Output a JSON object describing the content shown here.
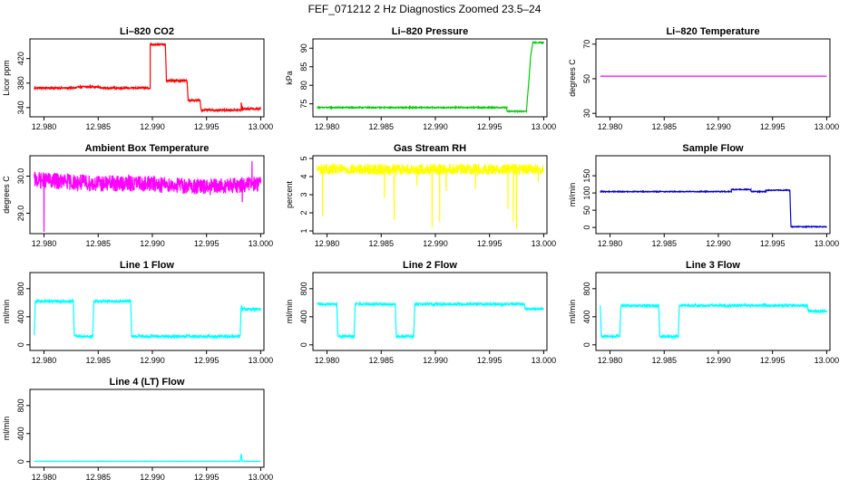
{
  "page_title": "FEF_071212  2 Hz Diagnostics Zoomed 23.5–24",
  "chart_data": [
    {
      "type": "line",
      "title": "Li–820 CO2",
      "ylabel": "Licor ppm",
      "color": "#ff0000",
      "xlim": [
        12.9787,
        13.0003
      ],
      "ylim": [
        325,
        452
      ],
      "xticks": [
        12.98,
        12.985,
        12.99,
        12.995,
        13.0
      ],
      "xtick_labels": [
        "12.980",
        "12.985",
        "12.990",
        "12.995",
        "13.000"
      ],
      "yticks": [
        340,
        380,
        420
      ],
      "ytick_labels": [
        "340",
        "380",
        "420"
      ],
      "series": [
        {
          "x": [
            12.9791,
            12.983,
            12.9832,
            12.985,
            12.9852,
            12.9898,
            12.9898,
            12.9912,
            12.9913,
            12.9932,
            12.9933,
            12.9944,
            12.9945,
            12.9982,
            12.9982,
            12.9983,
            12.9983,
            13.0
          ],
          "y": [
            372,
            372,
            374,
            374,
            372,
            372,
            443,
            443,
            384,
            384,
            352,
            352,
            336,
            336,
            348,
            336,
            338,
            338
          ],
          "noise": 1.5
        }
      ]
    },
    {
      "type": "line",
      "title": "Li–820 Pressure",
      "ylabel": "kPa",
      "color": "#00cc00",
      "xlim": [
        12.9787,
        13.0003
      ],
      "ylim": [
        71.5,
        92.5
      ],
      "xticks": [
        12.98,
        12.985,
        12.99,
        12.995,
        13.0
      ],
      "xtick_labels": [
        "12.980",
        "12.985",
        "12.990",
        "12.995",
        "13.000"
      ],
      "yticks": [
        75,
        80,
        85,
        90
      ],
      "ytick_labels": [
        "75",
        "80",
        "85",
        "90"
      ],
      "series": [
        {
          "x": [
            12.9791,
            12.9966,
            12.9966,
            12.9984,
            12.9986,
            12.9988,
            12.999,
            13.0
          ],
          "y": [
            74.0,
            74.0,
            73.0,
            73.0,
            80.0,
            88.0,
            91.5,
            91.5
          ],
          "noise": 0.15
        }
      ]
    },
    {
      "type": "line",
      "title": "Li–820 Temperature",
      "ylabel": "degrees C",
      "color": "#ff00ff",
      "xlim": [
        12.9787,
        13.0003
      ],
      "ylim": [
        28,
        73
      ],
      "xticks": [
        12.98,
        12.985,
        12.99,
        12.995,
        13.0
      ],
      "xtick_labels": [
        "12.980",
        "12.985",
        "12.990",
        "12.995",
        "13.000"
      ],
      "yticks": [
        30,
        50,
        70
      ],
      "ytick_labels": [
        "30",
        "50",
        "70"
      ],
      "series": [
        {
          "x": [
            12.9791,
            13.0
          ],
          "y": [
            51.5,
            51.5
          ],
          "noise": 0
        }
      ]
    },
    {
      "type": "line",
      "title": "Ambient Box Temperature",
      "ylabel": "degrees C",
      "color": "#ff00ff",
      "xlim": [
        12.9787,
        13.0003
      ],
      "ylim": [
        28.45,
        30.55
      ],
      "xticks": [
        12.98,
        12.985,
        12.99,
        12.995,
        13.0
      ],
      "xtick_labels": [
        "12.980",
        "12.985",
        "12.990",
        "12.995",
        "13.000"
      ],
      "yticks": [
        29.0,
        30.0
      ],
      "ytick_labels": [
        "29.0",
        "30.0"
      ],
      "series": [
        {
          "x": [
            12.9791,
            12.985,
            12.99,
            12.995,
            13.0
          ],
          "y": [
            29.9,
            29.8,
            29.8,
            29.7,
            29.8
          ],
          "noise": 0.22,
          "spikes": [
            [
              12.98,
              28.5
            ],
            [
              12.9983,
              29.3
            ],
            [
              12.9992,
              30.4
            ]
          ]
        }
      ]
    },
    {
      "type": "line",
      "title": "Gas Stream RH",
      "ylabel": "percent",
      "color": "#ffff00",
      "xlim": [
        12.9787,
        13.0003
      ],
      "ylim": [
        0.85,
        5.15
      ],
      "xticks": [
        12.98,
        12.985,
        12.99,
        12.995,
        13.0
      ],
      "xtick_labels": [
        "12.980",
        "12.985",
        "12.990",
        "12.995",
        "13.000"
      ],
      "yticks": [
        1,
        2,
        3,
        4,
        5
      ],
      "ytick_labels": [
        "1",
        "2",
        "3",
        "4",
        "5"
      ],
      "series": [
        {
          "x": [
            12.9791,
            12.99,
            13.0
          ],
          "y": [
            4.4,
            4.4,
            4.4
          ],
          "noise": 0.3,
          "spikes": [
            [
              12.9796,
              1.8
            ],
            [
              12.9853,
              2.8
            ],
            [
              12.9862,
              1.6
            ],
            [
              12.9883,
              3.5
            ],
            [
              12.9897,
              1.2
            ],
            [
              12.9904,
              1.5
            ],
            [
              12.991,
              3.2
            ],
            [
              12.9937,
              3.3
            ],
            [
              12.9967,
              2.2
            ],
            [
              12.9972,
              1.5
            ],
            [
              12.9975,
              1.1
            ],
            [
              12.9995,
              3.7
            ]
          ]
        }
      ]
    },
    {
      "type": "line",
      "title": "Sample Flow",
      "ylabel": "ml/min",
      "color": "#0000cc",
      "xlim": [
        12.9787,
        13.0003
      ],
      "ylim": [
        -18,
        208
      ],
      "xticks": [
        12.98,
        12.985,
        12.99,
        12.995,
        13.0
      ],
      "xtick_labels": [
        "12.980",
        "12.985",
        "12.990",
        "12.995",
        "13.000"
      ],
      "yticks": [
        0,
        50,
        100,
        150
      ],
      "ytick_labels": [
        "0",
        "50",
        "100",
        "150"
      ],
      "series": [
        {
          "x": [
            12.9791,
            12.9912,
            12.9912,
            12.993,
            12.993,
            12.9944,
            12.9944,
            12.9966,
            12.9967,
            13.0
          ],
          "y": [
            104,
            104,
            110,
            110,
            104,
            104,
            108,
            108,
            2,
            2
          ],
          "noise": 1.2
        }
      ]
    },
    {
      "type": "line",
      "title": "Line 1 Flow",
      "ylabel": "ml/min",
      "color": "#00ffff",
      "xlim": [
        12.9787,
        13.0003
      ],
      "ylim": [
        -80,
        1030
      ],
      "xticks": [
        12.98,
        12.985,
        12.99,
        12.995,
        13.0
      ],
      "xtick_labels": [
        "12.980",
        "12.985",
        "12.990",
        "12.995",
        "13.000"
      ],
      "yticks": [
        0,
        400,
        800
      ],
      "ytick_labels": [
        "0",
        "400",
        "800"
      ],
      "series": [
        {
          "x": [
            12.9791,
            12.9792,
            12.9827,
            12.9828,
            12.9845,
            12.9846,
            12.988,
            12.9881,
            12.9981,
            12.9982,
            12.9983,
            13.0
          ],
          "y": [
            120,
            620,
            620,
            120,
            120,
            620,
            620,
            120,
            120,
            550,
            510,
            510
          ],
          "noise": 20
        }
      ]
    },
    {
      "type": "line",
      "title": "Line 2 Flow",
      "ylabel": "ml/min",
      "color": "#00ffff",
      "xlim": [
        12.9787,
        13.0003
      ],
      "ylim": [
        -80,
        1030
      ],
      "xticks": [
        12.98,
        12.985,
        12.99,
        12.995,
        13.0
      ],
      "xtick_labels": [
        "12.980",
        "12.985",
        "12.990",
        "12.995",
        "13.000"
      ],
      "yticks": [
        0,
        400,
        800
      ],
      "ytick_labels": [
        "0",
        "400",
        "800"
      ],
      "series": [
        {
          "x": [
            12.9791,
            12.9809,
            12.981,
            12.9825,
            12.9826,
            12.9863,
            12.9864,
            12.988,
            12.9881,
            12.9982,
            12.9983,
            13.0
          ],
          "y": [
            580,
            580,
            120,
            120,
            580,
            580,
            120,
            120,
            580,
            580,
            510,
            510
          ],
          "noise": 18
        }
      ]
    },
    {
      "type": "line",
      "title": "Line 3 Flow",
      "ylabel": "ml/min",
      "color": "#00ffff",
      "xlim": [
        12.9787,
        13.0003
      ],
      "ylim": [
        -80,
        1030
      ],
      "xticks": [
        12.98,
        12.985,
        12.99,
        12.995,
        13.0
      ],
      "xtick_labels": [
        "12.980",
        "12.985",
        "12.990",
        "12.995",
        "13.000"
      ],
      "yticks": [
        0,
        400,
        800
      ],
      "ytick_labels": [
        "0",
        "400",
        "800"
      ],
      "series": [
        {
          "x": [
            12.9791,
            12.9792,
            12.9809,
            12.981,
            12.9845,
            12.9846,
            12.9863,
            12.9864,
            12.9982,
            12.9983,
            13.0
          ],
          "y": [
            580,
            120,
            120,
            560,
            560,
            120,
            120,
            560,
            560,
            480,
            480
          ],
          "noise": 18
        }
      ]
    },
    {
      "type": "line",
      "title": "Line 4 (LT) Flow",
      "ylabel": "ml/min",
      "color": "#00ffff",
      "xlim": [
        12.9787,
        13.0003
      ],
      "ylim": [
        -80,
        1030
      ],
      "xticks": [
        12.98,
        12.985,
        12.99,
        12.995,
        13.0
      ],
      "xtick_labels": [
        "12.980",
        "12.985",
        "12.990",
        "12.995",
        "13.000"
      ],
      "yticks": [
        0,
        400,
        800
      ],
      "ytick_labels": [
        "0",
        "400",
        "800"
      ],
      "series": [
        {
          "x": [
            12.9791,
            12.9981,
            12.9982,
            12.9983,
            13.0
          ],
          "y": [
            5,
            5,
            110,
            5,
            5
          ],
          "noise": 2
        }
      ]
    }
  ]
}
